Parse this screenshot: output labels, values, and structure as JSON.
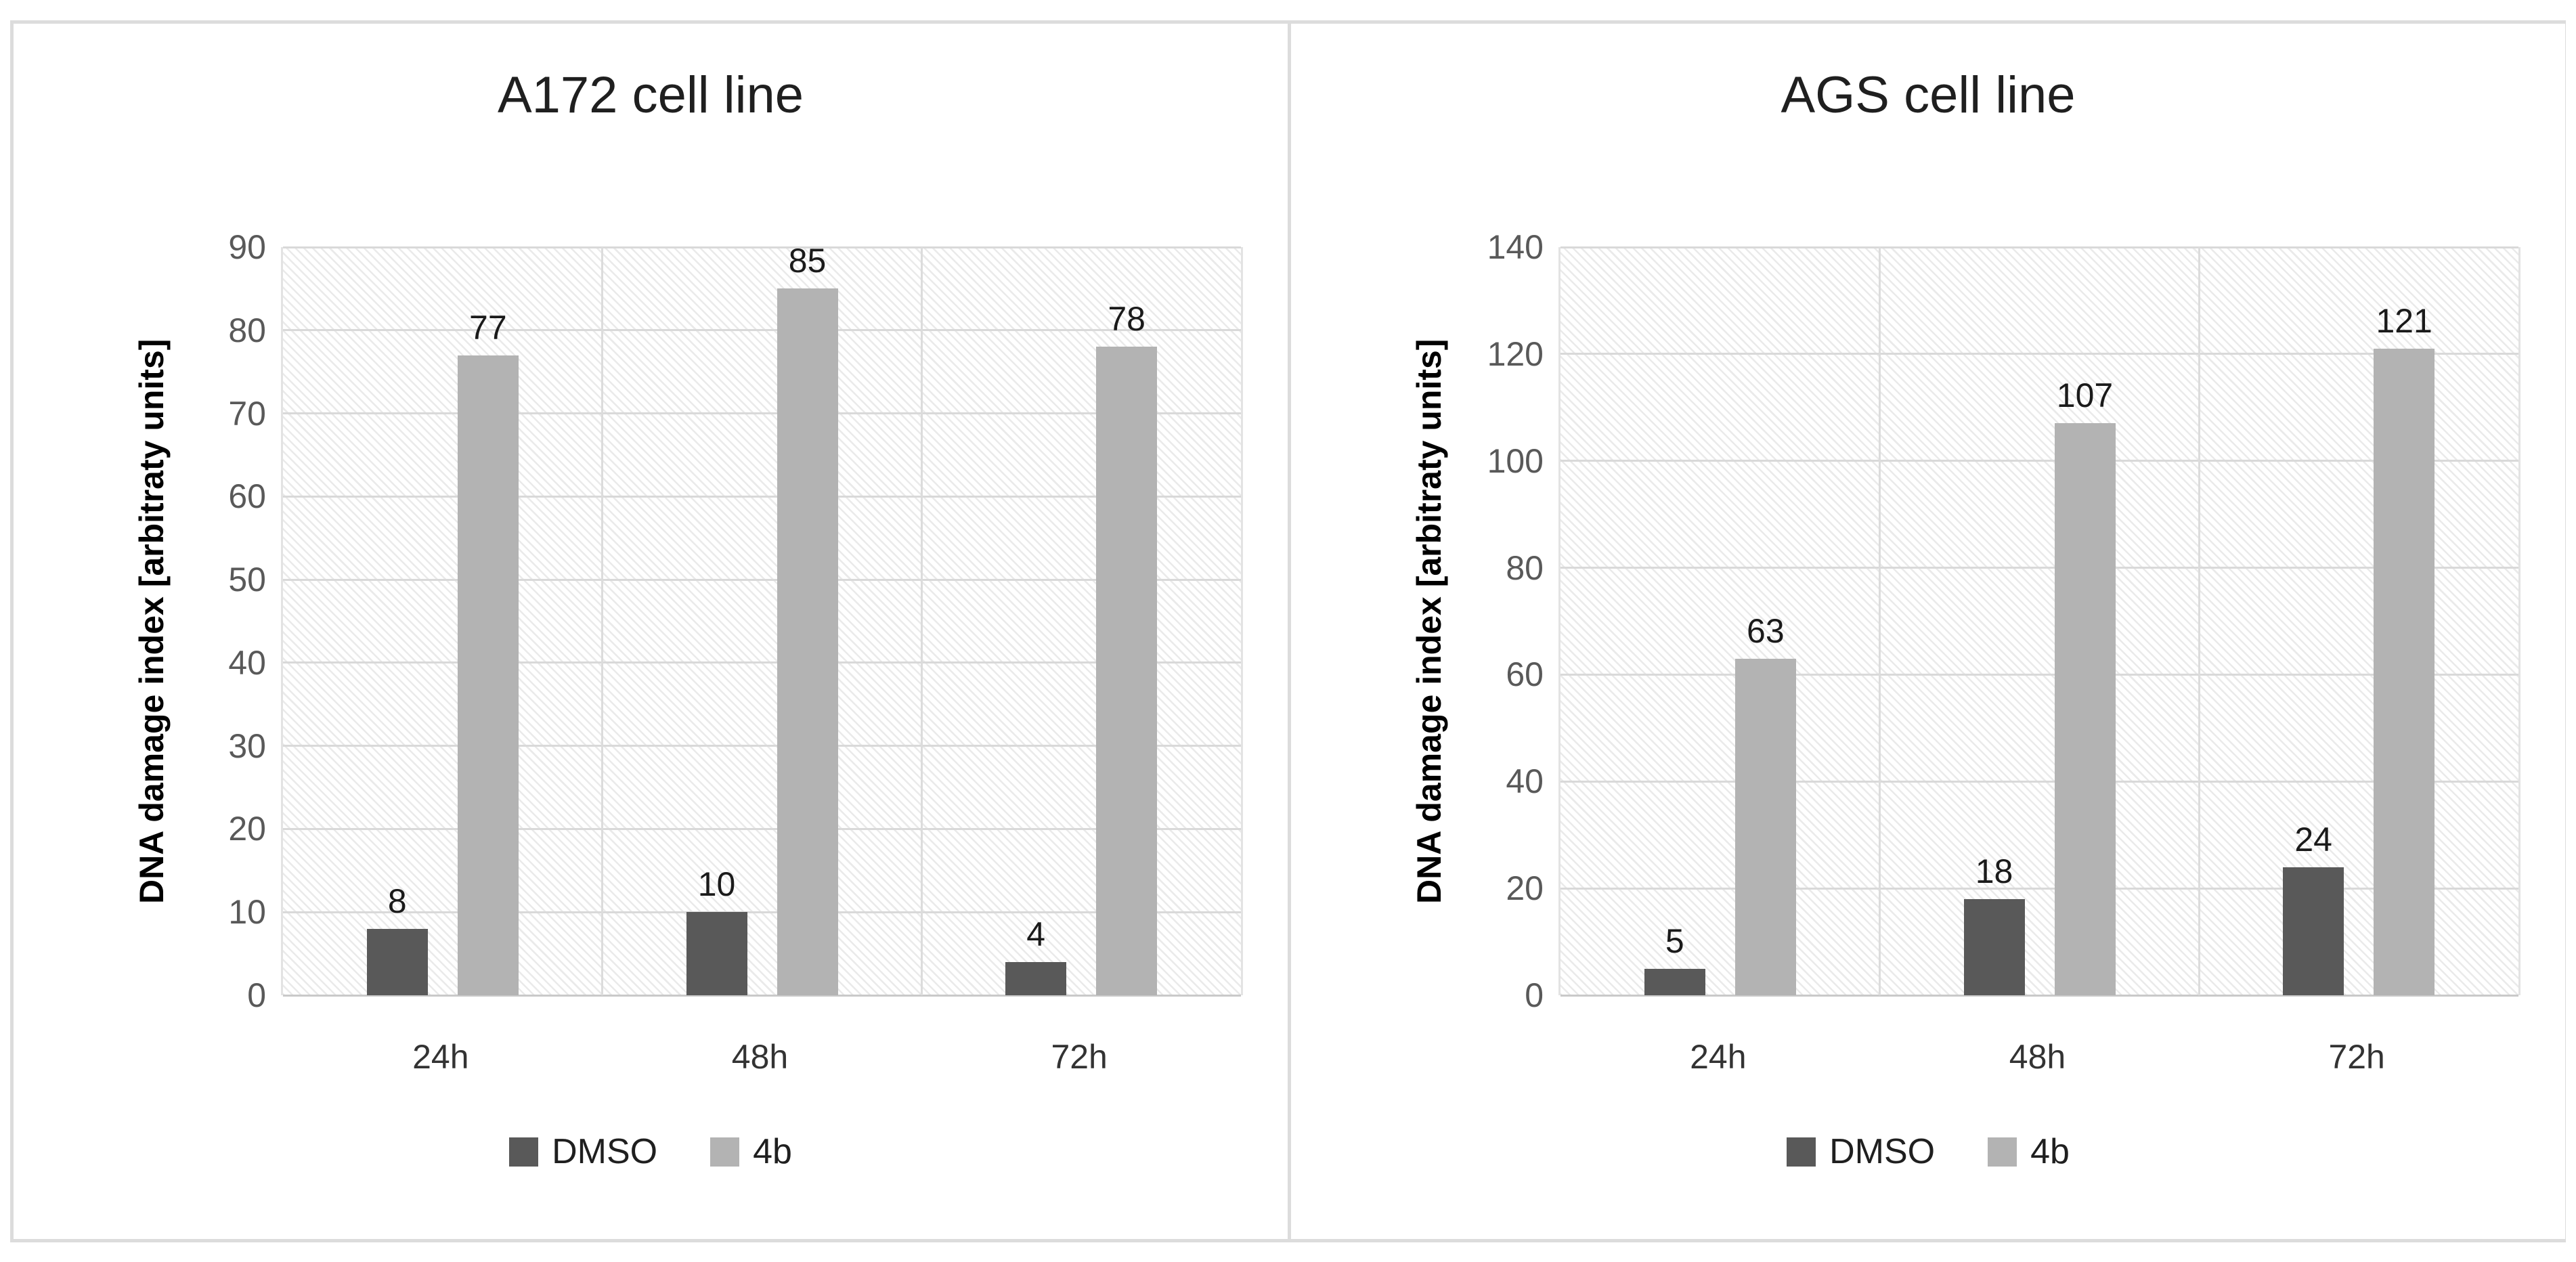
{
  "chart_data": [
    {
      "type": "bar",
      "title": "A172 cell line",
      "ylabel": "DNA damage index [arbitraty units]",
      "xlabel": "",
      "categories": [
        "24h",
        "48h",
        "72h"
      ],
      "series": [
        {
          "name": "DMSO",
          "color": "#595959",
          "values": [
            8,
            10,
            4
          ]
        },
        {
          "name": "4b",
          "color": "#b3b3b3",
          "values": [
            77,
            85,
            78
          ]
        }
      ],
      "ylim": [
        0,
        90
      ],
      "ytick_step": 10,
      "yticks": [
        0,
        10,
        20,
        30,
        40,
        50,
        60,
        70,
        80,
        90
      ],
      "grid": true,
      "data_labels": true,
      "legend_position": "bottom",
      "plot_background": "diagonal-hatch"
    },
    {
      "type": "bar",
      "title": "AGS cell line",
      "ylabel": "DNA damage index [arbitraty units]",
      "xlabel": "",
      "categories": [
        "24h",
        "48h",
        "72h"
      ],
      "series": [
        {
          "name": "DMSO",
          "color": "#595959",
          "values": [
            5,
            18,
            24
          ]
        },
        {
          "name": "4b",
          "color": "#b3b3b3",
          "values": [
            63,
            107,
            121
          ]
        }
      ],
      "ylim": [
        0,
        140
      ],
      "ytick_step": 20,
      "yticks": [
        0,
        20,
        40,
        60,
        80,
        100,
        120,
        140
      ],
      "grid": true,
      "data_labels": true,
      "legend_position": "bottom",
      "plot_background": "diagonal-hatch"
    }
  ],
  "styles": {
    "panel_border_color": "#dcdcdc",
    "gridline_color": "#d9d9d9",
    "hatch_line_color": "#eaeaea",
    "tick_text_color": "#595959",
    "category_text_color": "#333333",
    "data_label_color": "#1a1a1a",
    "title_color": "#1f1f1f",
    "series_dark": "#595959",
    "series_light": "#b3b3b3"
  }
}
